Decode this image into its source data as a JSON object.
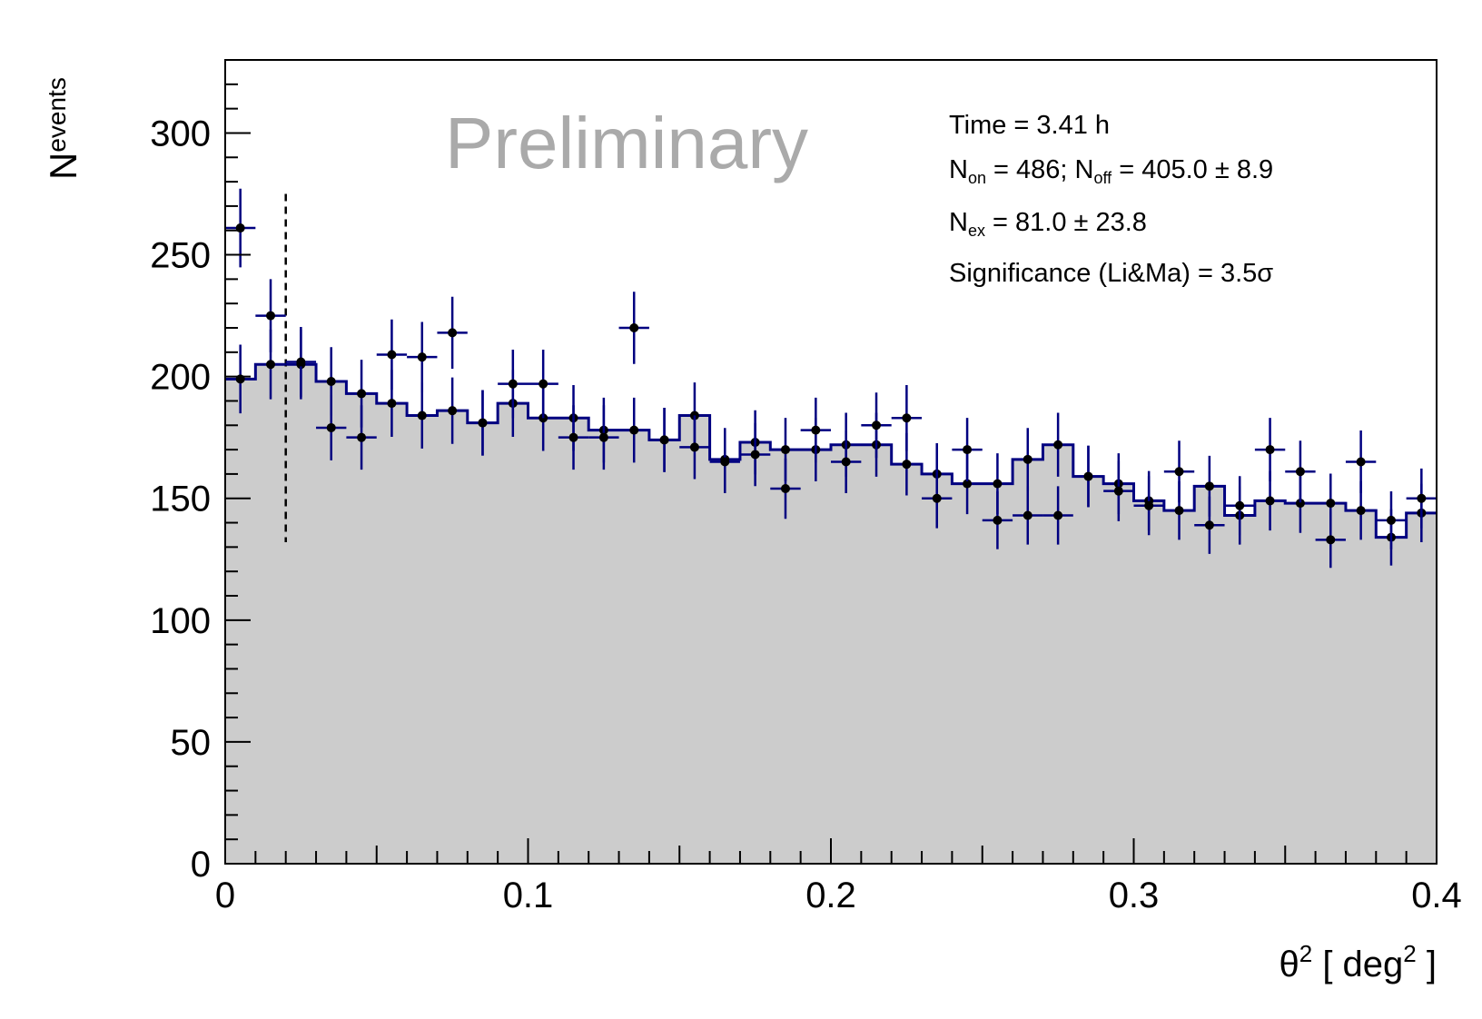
{
  "chart_data": {
    "type": "histogram",
    "watermark": "Preliminary",
    "ylabel": {
      "main": "N",
      "sub": "events"
    },
    "xlabel": {
      "pre": "θ",
      "sup1": "2",
      "mid": " [ deg",
      "sup2": "2",
      "post": " ]"
    },
    "xlim": [
      0,
      0.4
    ],
    "ylim": [
      0,
      330
    ],
    "bin_width": 0.01,
    "x_ticks": [
      "0",
      "0.1",
      "0.2",
      "0.3",
      "0.4"
    ],
    "y_ticks": [
      "0",
      "50",
      "100",
      "150",
      "200",
      "250",
      "300"
    ],
    "cut_line_x": 0.02,
    "stats": {
      "time": "Time = 3.41 h",
      "non_label": "N",
      "non_sub": "on",
      "non_value": " = 486; N",
      "noff_sub": "off",
      "noff_value": " = 405.0 ±  8.9",
      "nex_label": "N",
      "nex_sub": "ex",
      "nex_value": " = 81.0 ± 23.8",
      "significance": "Significance (Li&Ma) =  3.5σ"
    },
    "series": [
      {
        "name": "on",
        "color": "#000000",
        "values": [
          261,
          225,
          206,
          179,
          175,
          209,
          208,
          218,
          181,
          197,
          197,
          175,
          175,
          220,
          174,
          171,
          165,
          168,
          154,
          178,
          165,
          180,
          183,
          150,
          170,
          141,
          143,
          143,
          159,
          153,
          147,
          161,
          139,
          147,
          170,
          161,
          133,
          165,
          141,
          150
        ]
      },
      {
        "name": "off",
        "color": "#000000",
        "line_color": "#000080",
        "fill_color": "#cccccc",
        "values": [
          199,
          205,
          205,
          198,
          193,
          189,
          184,
          186,
          181,
          189,
          183,
          183,
          178,
          178,
          174,
          184,
          166,
          173,
          170,
          170,
          172,
          172,
          164,
          160,
          156,
          156,
          166,
          172,
          159,
          156,
          149,
          145,
          155,
          143,
          149,
          148,
          148,
          145,
          134,
          144
        ]
      }
    ]
  }
}
